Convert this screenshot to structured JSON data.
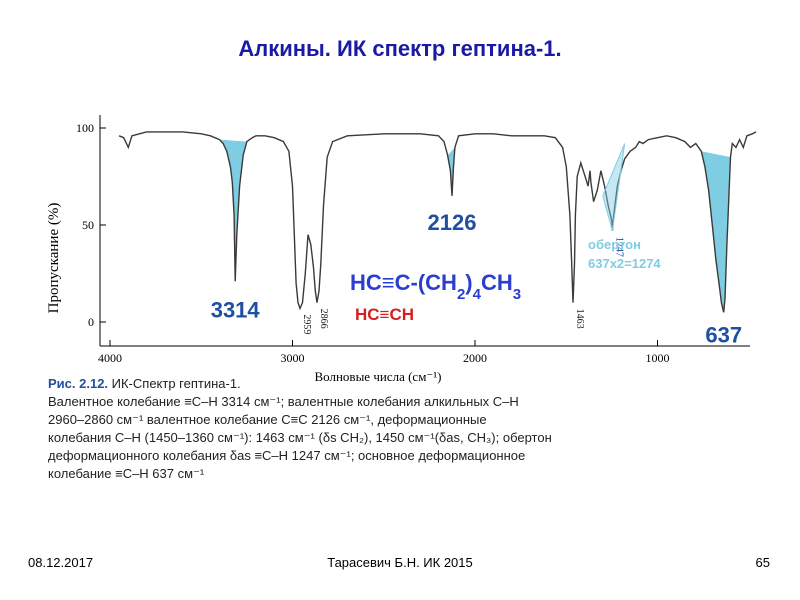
{
  "slide": {
    "title": "Алкины. ИК спектр гептина-1.",
    "footer_date": "08.12.2017",
    "footer_author": "Тарасевич Б.Н.   ИК 2015",
    "footer_page": "65"
  },
  "caption": {
    "label": "Рис. 2.12.",
    "heading": " ИК-Спектр гептина-1.",
    "text": "Валентное колебание ≡C–H 3314 см⁻¹; валентные колебания алкильных C–H\n2960–2860 см⁻¹                 валентное колебание C≡C 2126 см⁻¹, деформационные\nколебания C–H (1450–1360 см⁻¹): 1463 см⁻¹ (δs CH₂), 1450 см⁻¹(δas, CH₃); обертон\nдеформационного колебания δas ≡C–H 1247 см⁻¹; основное деформационное\nколебание ≡C–H 637 см⁻¹"
  },
  "chart_data": {
    "type": "line",
    "xlabel": "Волновые числа (см⁻¹)",
    "ylabel": "Пропускание (%)",
    "x_ticks": [
      4000,
      3000,
      2000,
      1000
    ],
    "y_ticks": [
      0,
      50,
      100
    ],
    "xlim": [
      4000,
      450
    ],
    "ylim": [
      0,
      100
    ],
    "grid": false,
    "series": [
      {
        "x": [
          3950,
          3925,
          3900,
          3880,
          3800,
          3700,
          3600,
          3500,
          3450,
          3400,
          3380,
          3360,
          3340,
          3330,
          3320,
          3314,
          3305,
          3290,
          3270,
          3250,
          3220,
          3200,
          3150,
          3100,
          3050,
          3020,
          3000,
          2990,
          2980,
          2970,
          2959,
          2945,
          2930,
          2915,
          2900,
          2885,
          2875,
          2866,
          2855,
          2845,
          2830,
          2810,
          2780,
          2700,
          2500,
          2300,
          2200,
          2170,
          2150,
          2135,
          2126,
          2118,
          2110,
          2090,
          2000,
          1900,
          1800,
          1700,
          1620,
          1560,
          1520,
          1500,
          1480,
          1470,
          1463,
          1455,
          1450,
          1440,
          1420,
          1400,
          1380,
          1370,
          1365,
          1350,
          1330,
          1310,
          1290,
          1270,
          1250,
          1247,
          1240,
          1220,
          1200,
          1180,
          1150,
          1120,
          1100,
          1080,
          1050,
          1000,
          950,
          900,
          850,
          820,
          790,
          760,
          740,
          720,
          700,
          680,
          660,
          650,
          640,
          637,
          630,
          620,
          600,
          590,
          570,
          550,
          530,
          510,
          480,
          460
        ],
        "y": [
          96,
          95,
          90,
          96,
          98,
          98,
          98,
          97,
          96,
          94,
          92,
          88,
          80,
          72,
          55,
          21,
          45,
          70,
          86,
          93,
          95,
          96,
          96,
          95,
          93,
          88,
          70,
          45,
          20,
          10,
          7,
          10,
          25,
          45,
          40,
          28,
          16,
          10,
          16,
          30,
          60,
          85,
          93,
          96,
          97,
          97,
          96,
          93,
          86,
          78,
          65,
          80,
          90,
          96,
          97,
          97,
          96,
          96,
          96,
          95,
          90,
          80,
          55,
          30,
          10,
          30,
          55,
          75,
          82,
          76,
          70,
          78,
          72,
          62,
          68,
          78,
          70,
          60,
          52,
          47,
          55,
          70,
          78,
          84,
          88,
          90,
          93,
          92,
          94,
          95,
          96,
          95,
          93,
          90,
          92,
          88,
          80,
          68,
          50,
          32,
          18,
          10,
          6,
          5,
          12,
          40,
          85,
          92,
          90,
          94,
          90,
          96,
          97,
          98
        ]
      }
    ],
    "peak_labels": [
      {
        "text": "3314",
        "x": 3314,
        "y": 21
      },
      {
        "text": "2959",
        "x": 2959,
        "y": 7
      },
      {
        "text": "2866",
        "x": 2866,
        "y": 10
      },
      {
        "text": "2126",
        "x": 2126,
        "y": 65
      },
      {
        "text": "1463",
        "x": 1463,
        "y": 10
      },
      {
        "text": "1247",
        "x": 1247,
        "y": 47
      },
      {
        "text": "637",
        "x": 637,
        "y": 5
      }
    ],
    "overtone_note": [
      "обертон",
      "637x2=1274"
    ],
    "formula_heptyne": "HC≡C-(CH2)4CH3",
    "formula_acetylene": "HC≡CH",
    "colors": {
      "spectrum": "#3a3a3a",
      "fill": "#7fcde3",
      "label_blue": "#1f4fa0",
      "overtone": "#7fcde3",
      "formula_blue": "#2a3fd1",
      "formula_red": "#d42020"
    }
  }
}
